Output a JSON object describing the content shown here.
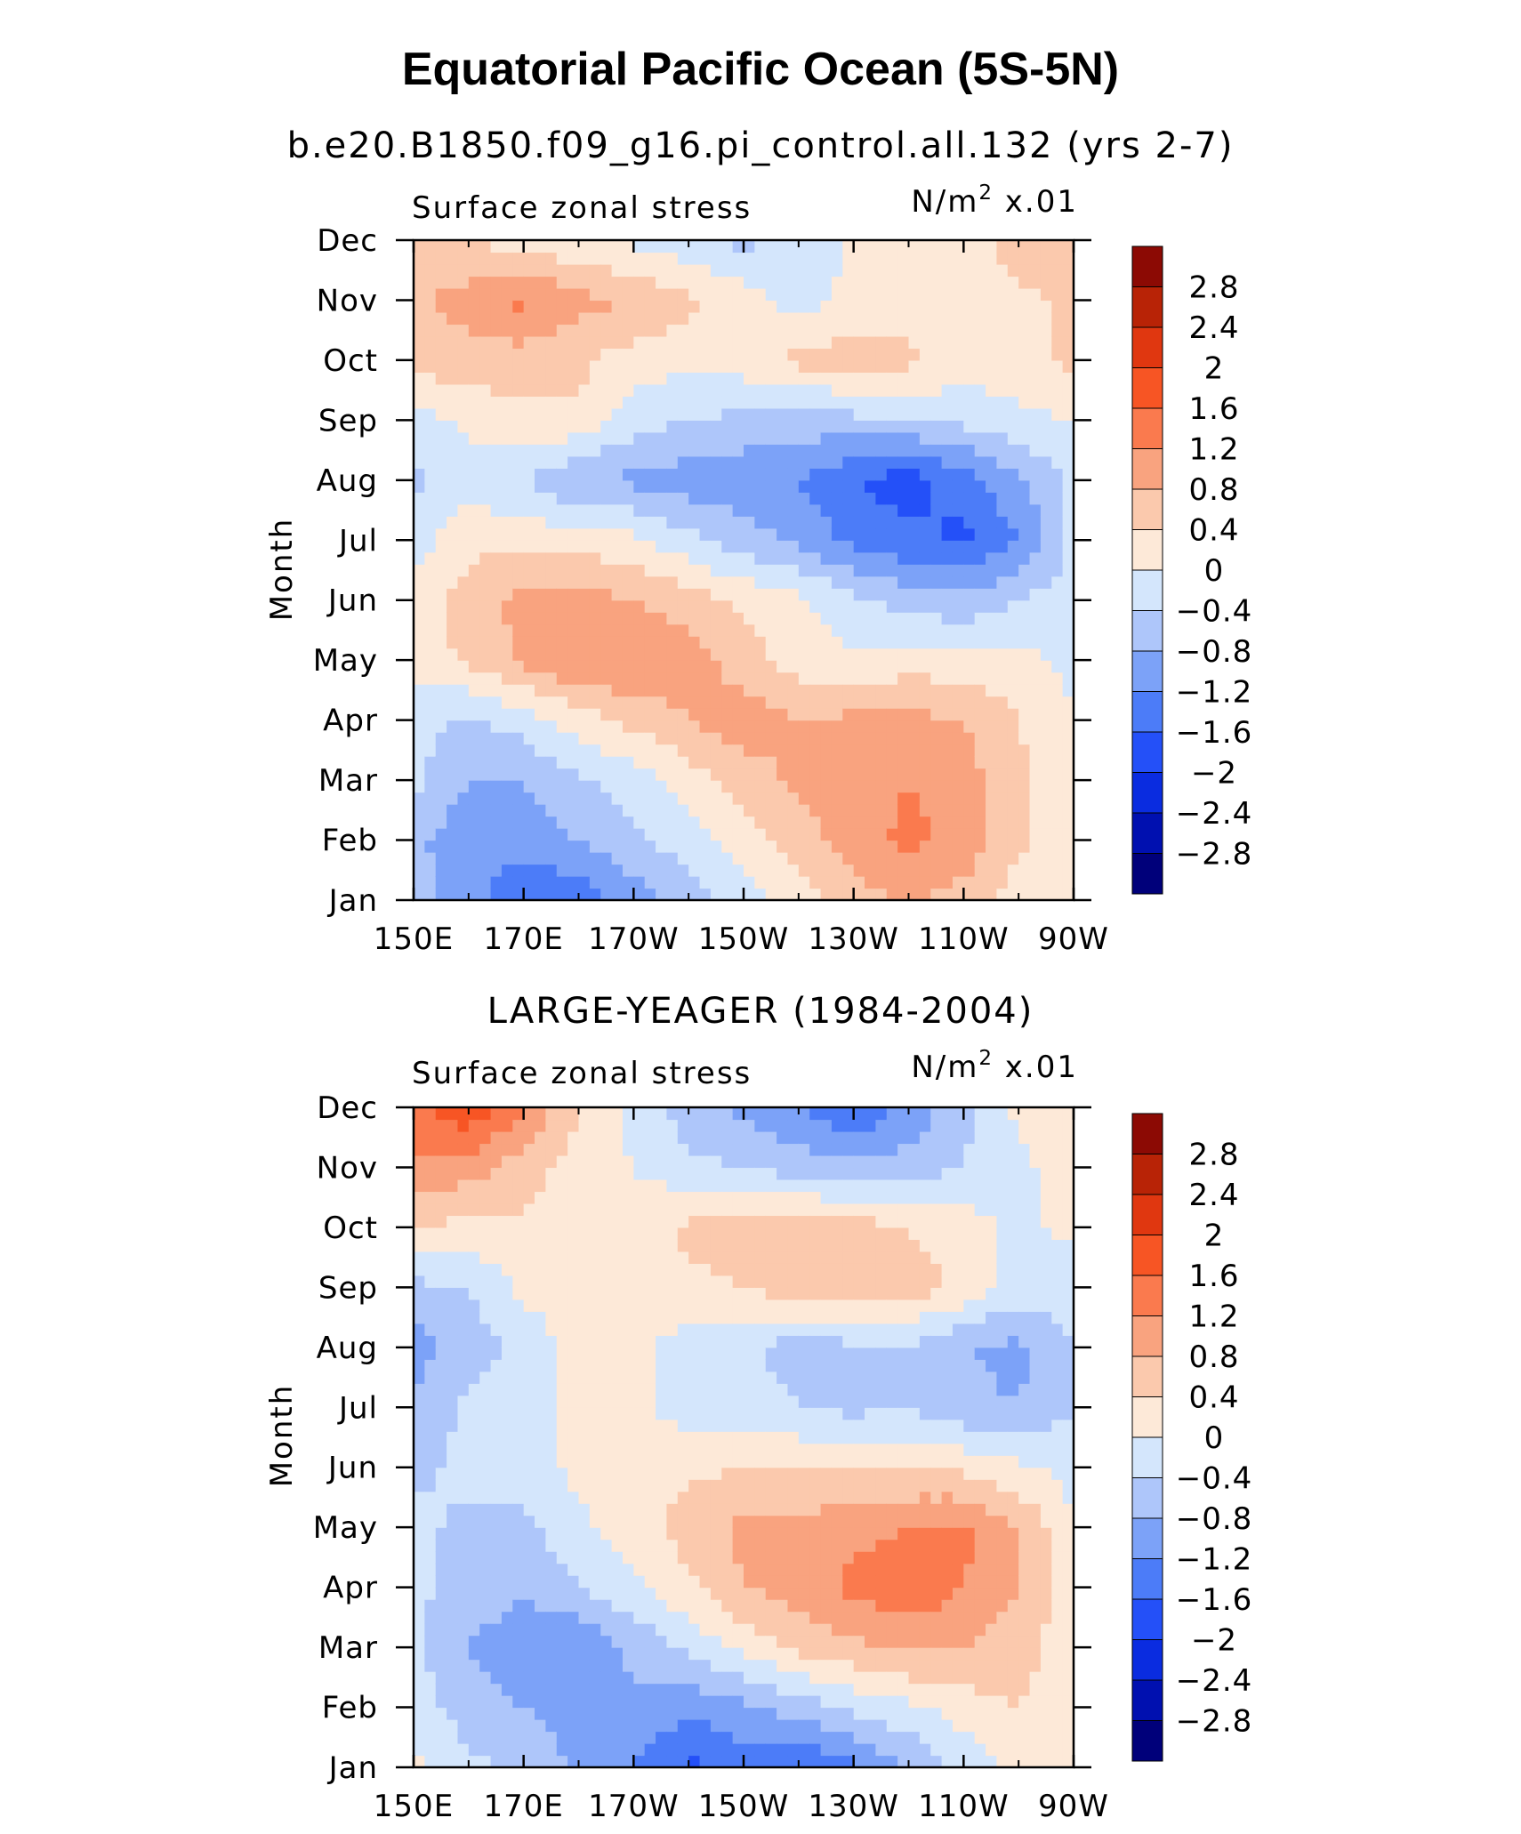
{
  "figure": {
    "title": "Equatorial Pacific Ocean (5S-5N)"
  },
  "chart_data": [
    {
      "type": "heatmap",
      "title": "b.e20.B1850.f09_g16.pi_control.all.132 (yrs 2-7)",
      "left_label": "Surface zonal stress",
      "units_base": "N/m",
      "units_exp": "2",
      "units_scale": "x.01",
      "ylabel": "Month",
      "xlabel": "",
      "x_ticks": [
        "150E",
        "170E",
        "170W",
        "150W",
        "130W",
        "110W",
        "90W"
      ],
      "y_ticks": [
        "Jan",
        "Feb",
        "Mar",
        "Apr",
        "May",
        "Jun",
        "Jul",
        "Aug",
        "Sep",
        "Oct",
        "Nov",
        "Dec"
      ],
      "xlim": [
        150,
        270
      ],
      "ylim": [
        1,
        12
      ],
      "x": [
        150,
        160,
        170,
        180,
        190,
        200,
        210,
        220,
        230,
        240,
        250,
        260,
        270
      ],
      "y": [
        "Jan",
        "Feb",
        "Mar",
        "Apr",
        "May",
        "Jun",
        "Jul",
        "Aug",
        "Sep",
        "Oct",
        "Nov",
        "Dec"
      ],
      "z": [
        [
          -0.6,
          -1.0,
          -1.6,
          -1.5,
          -1.0,
          -0.6,
          -0.2,
          0.2,
          0.6,
          0.9,
          0.6,
          0.2,
          0.1
        ],
        [
          -0.7,
          -1.1,
          -1.0,
          -0.8,
          -0.5,
          -0.2,
          0.2,
          0.6,
          1.0,
          1.3,
          1.1,
          0.5,
          0.1
        ],
        [
          -0.3,
          -0.8,
          -0.8,
          -0.5,
          -0.2,
          0.2,
          0.6,
          0.9,
          1.1,
          1.2,
          1.0,
          0.5,
          0.1
        ],
        [
          -0.2,
          -0.5,
          -0.2,
          0.2,
          0.5,
          0.8,
          1.0,
          0.8,
          0.9,
          0.9,
          0.8,
          0.4,
          0.0
        ],
        [
          0.1,
          0.5,
          0.9,
          1.2,
          1.2,
          1.0,
          0.6,
          0.2,
          0.1,
          0.2,
          0.2,
          0.1,
          -0.1
        ],
        [
          0.1,
          0.6,
          0.9,
          1.0,
          0.8,
          0.6,
          0.3,
          0.1,
          -0.3,
          -0.6,
          -0.7,
          -0.4,
          -0.2
        ],
        [
          -0.2,
          0.3,
          0.3,
          0.2,
          0.1,
          -0.3,
          -0.6,
          -0.9,
          -1.3,
          -1.5,
          -1.7,
          -1.2,
          -0.3
        ],
        [
          -0.5,
          -0.2,
          -0.4,
          -0.8,
          -0.9,
          -1.0,
          -1.1,
          -1.2,
          -1.6,
          -1.8,
          -1.4,
          -0.9,
          -0.3
        ],
        [
          -0.2,
          0.1,
          0.3,
          0.3,
          -0.2,
          -0.4,
          -0.5,
          -0.6,
          -0.5,
          -0.4,
          -0.3,
          -0.1,
          0.0
        ],
        [
          0.6,
          0.6,
          0.6,
          0.5,
          0.2,
          0.1,
          0.2,
          0.5,
          0.6,
          0.5,
          0.2,
          0.2,
          0.5
        ],
        [
          0.7,
          1.0,
          1.3,
          0.9,
          0.8,
          0.5,
          0.2,
          -0.2,
          0.1,
          0.2,
          0.2,
          0.3,
          0.5
        ],
        [
          0.4,
          0.4,
          0.2,
          0.1,
          -0.1,
          -0.3,
          -0.5,
          -0.3,
          0.1,
          0.3,
          0.2,
          0.6,
          0.6
        ]
      ]
    },
    {
      "type": "heatmap",
      "title": "LARGE-YEAGER (1984-2004)",
      "left_label": "Surface zonal stress",
      "units_base": "N/m",
      "units_exp": "2",
      "units_scale": "x.01",
      "ylabel": "Month",
      "xlabel": "",
      "x_ticks": [
        "150E",
        "170E",
        "170W",
        "150W",
        "130W",
        "110W",
        "90W"
      ],
      "y_ticks": [
        "Jan",
        "Feb",
        "Mar",
        "Apr",
        "May",
        "Jun",
        "Jul",
        "Aug",
        "Sep",
        "Oct",
        "Nov",
        "Dec"
      ],
      "xlim": [
        150,
        270
      ],
      "ylim": [
        1,
        12
      ],
      "x": [
        150,
        160,
        170,
        180,
        190,
        200,
        210,
        220,
        230,
        240,
        250,
        260,
        270
      ],
      "y": [
        "Jan",
        "Feb",
        "Mar",
        "Apr",
        "May",
        "Jun",
        "Jul",
        "Aug",
        "Sep",
        "Oct",
        "Nov",
        "Dec"
      ],
      "z": [
        [
          0.1,
          -0.3,
          -0.5,
          -0.9,
          -1.2,
          -1.7,
          -1.4,
          -1.7,
          -1.3,
          -0.8,
          -0.3,
          0.1,
          0.1
        ],
        [
          -0.2,
          -0.6,
          -0.8,
          -0.9,
          -0.9,
          -1.1,
          -0.9,
          -0.6,
          -0.3,
          -0.1,
          0.2,
          0.4,
          0.1
        ],
        [
          -0.3,
          -0.8,
          -1.1,
          -1.2,
          -0.7,
          -0.3,
          0.1,
          0.5,
          0.7,
          0.9,
          0.8,
          0.6,
          0.1
        ],
        [
          -0.3,
          -0.6,
          -0.7,
          -0.4,
          -0.1,
          0.3,
          0.8,
          1.0,
          1.3,
          1.5,
          1.2,
          0.8,
          0.2
        ],
        [
          -0.3,
          -0.5,
          -0.5,
          -0.1,
          0.2,
          0.6,
          0.9,
          0.9,
          1.1,
          1.2,
          1.3,
          0.8,
          0.1
        ],
        [
          -0.5,
          -0.3,
          -0.2,
          0.1,
          0.2,
          0.3,
          0.4,
          0.4,
          0.4,
          0.4,
          0.3,
          0.1,
          -0.2
        ],
        [
          -0.7,
          -0.3,
          -0.2,
          0.2,
          0.1,
          -0.2,
          -0.2,
          -0.4,
          -0.5,
          -0.4,
          -0.7,
          -0.8,
          -0.4
        ],
        [
          -1.0,
          -0.6,
          -0.3,
          0.2,
          0.1,
          -0.2,
          -0.3,
          -0.6,
          -0.5,
          -0.4,
          -0.8,
          -0.9,
          -0.4
        ],
        [
          -0.5,
          -0.4,
          0.1,
          0.2,
          0.2,
          0.3,
          0.4,
          0.6,
          0.7,
          0.6,
          0.3,
          -0.2,
          -0.2
        ],
        [
          0.4,
          0.3,
          0.3,
          0.2,
          0.2,
          0.5,
          0.6,
          0.7,
          0.6,
          0.4,
          0.2,
          -0.1,
          0.1
        ],
        [
          1.1,
          1.0,
          0.6,
          0.2,
          0.0,
          -0.3,
          -0.4,
          -0.6,
          -0.7,
          -0.6,
          -0.4,
          -0.1,
          0.2
        ],
        [
          1.5,
          1.9,
          1.2,
          0.4,
          -0.1,
          -0.6,
          -0.9,
          -1.2,
          -1.6,
          -1.1,
          -0.5,
          0.1,
          0.3
        ]
      ]
    }
  ],
  "colorbar": {
    "levels": [
      -2.8,
      -2.4,
      -2.0,
      -1.6,
      -1.2,
      -0.8,
      -0.4,
      0.0,
      0.4,
      0.8,
      1.2,
      1.6,
      2.0,
      2.4,
      2.8
    ],
    "labels": [
      "2.8",
      "2.4",
      "2",
      "1.6",
      "1.2",
      "0.8",
      "0.4",
      "0",
      "−0.4",
      "−0.8",
      "−1.2",
      "−1.6",
      "−2",
      "−2.4",
      "−2.8"
    ],
    "colors": [
      "#00007a",
      "#0010b0",
      "#0a2ce0",
      "#2450f8",
      "#4c7cf8",
      "#7ca2f8",
      "#aec6fa",
      "#d4e6fc",
      "#fde9d8",
      "#fbc9ad",
      "#f9a37f",
      "#fa7a4e",
      "#f75524",
      "#e03710",
      "#b82306",
      "#8c0a04"
    ]
  }
}
